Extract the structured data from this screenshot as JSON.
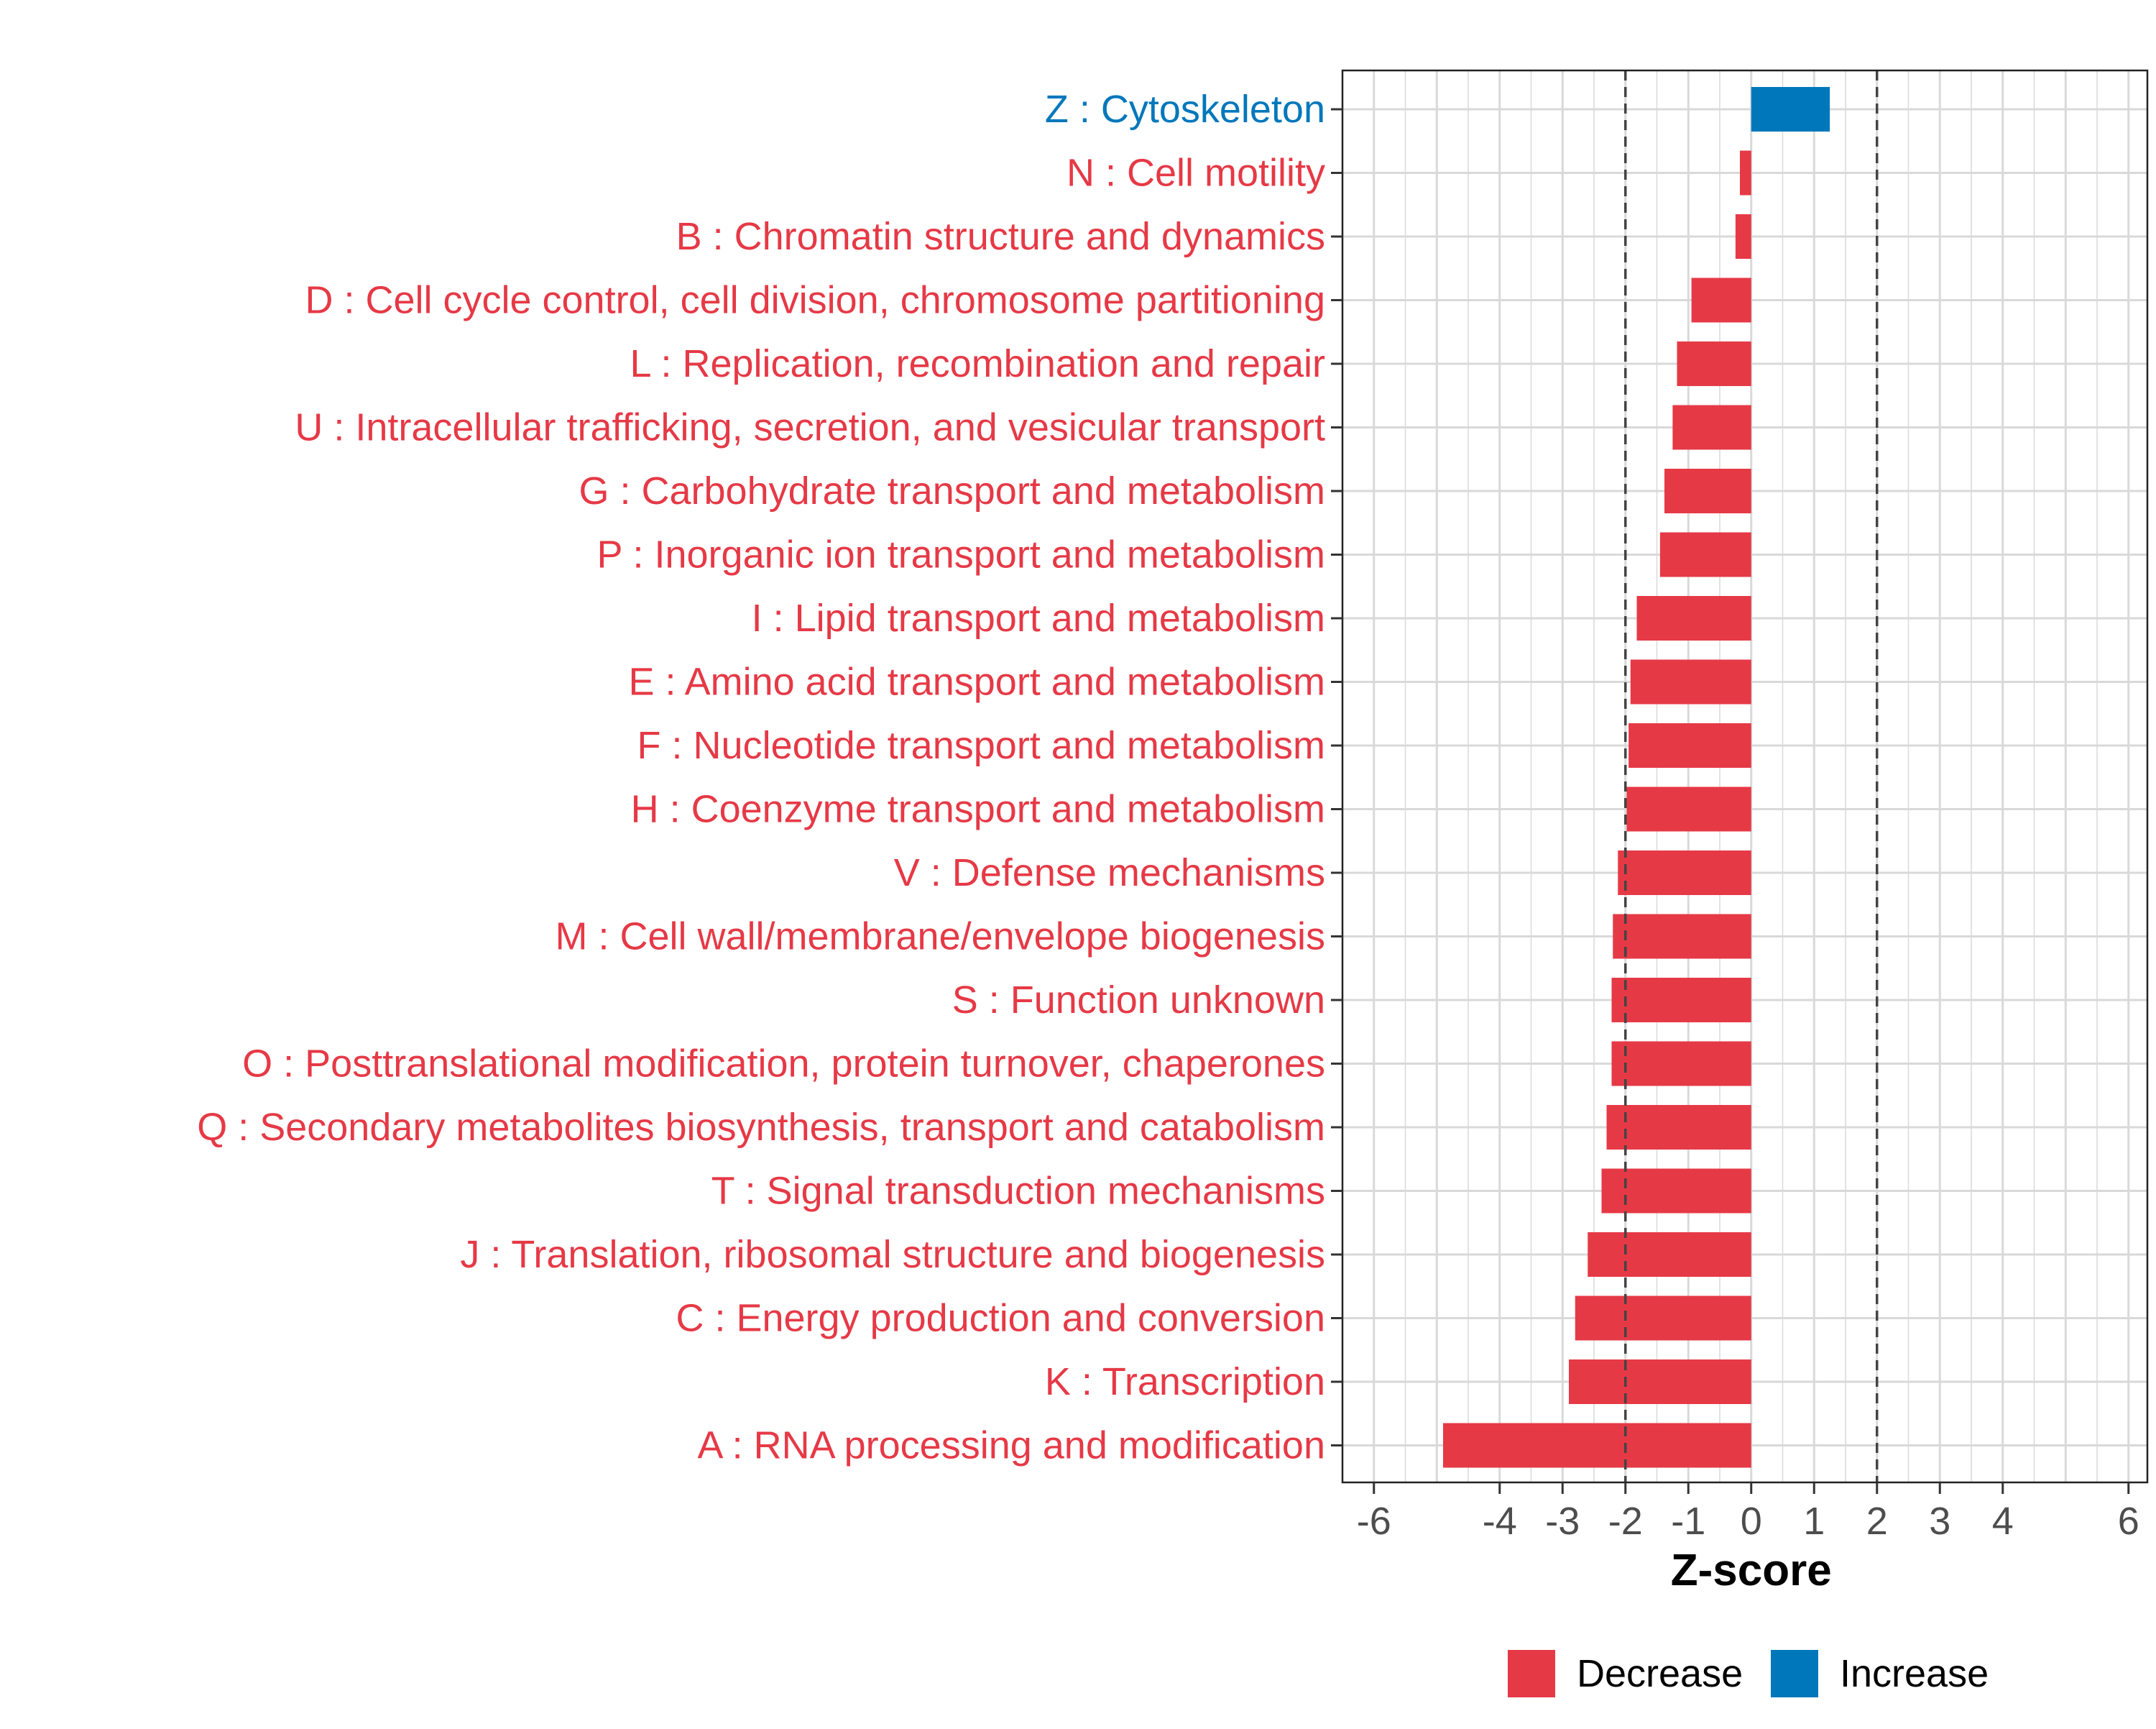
{
  "chart_data": {
    "type": "bar",
    "orientation": "horizontal",
    "xlabel": "Z-score",
    "ylabel": "",
    "xlim": [
      -6.5,
      6.3
    ],
    "xticks": [
      -6,
      -4,
      -3,
      -2,
      -1,
      0,
      1,
      2,
      3,
      4,
      6
    ],
    "reference_lines": [
      -2,
      2
    ],
    "grid": true,
    "legend_position": "bottom",
    "colors": {
      "Decrease": "#e63946",
      "Increase": "#0077bb"
    },
    "legend": [
      {
        "label": "Decrease",
        "color": "#e63946"
      },
      {
        "label": "Increase",
        "color": "#0077bb"
      }
    ],
    "categories": [
      "Z : Cytoskeleton",
      "N : Cell motility",
      "B : Chromatin structure and dynamics",
      "D : Cell cycle control, cell division, chromosome partitioning",
      "L : Replication, recombination and repair",
      "U : Intracellular trafficking, secretion, and vesicular transport",
      "G : Carbohydrate transport and metabolism",
      "P : Inorganic ion transport and metabolism",
      "I : Lipid transport and metabolism",
      "E : Amino acid transport and metabolism",
      "F : Nucleotide transport and metabolism",
      "H : Coenzyme transport and metabolism",
      "V : Defense mechanisms",
      "M : Cell wall/membrane/envelope biogenesis",
      "S : Function unknown",
      "O : Posttranslational modification, protein turnover, chaperones",
      "Q : Secondary metabolites biosynthesis, transport and catabolism",
      "T : Signal transduction mechanisms",
      "J : Translation, ribosomal structure and biogenesis",
      "C : Energy production and conversion",
      "K : Transcription",
      "A : RNA processing and modification"
    ],
    "values": [
      1.25,
      -0.18,
      -0.25,
      -0.95,
      -1.18,
      -1.25,
      -1.38,
      -1.45,
      -1.82,
      -1.92,
      -1.95,
      -1.98,
      -2.12,
      -2.2,
      -2.22,
      -2.22,
      -2.3,
      -2.38,
      -2.6,
      -2.8,
      -2.9,
      -4.9
    ],
    "groups": [
      "Increase",
      "Decrease",
      "Decrease",
      "Decrease",
      "Decrease",
      "Decrease",
      "Decrease",
      "Decrease",
      "Decrease",
      "Decrease",
      "Decrease",
      "Decrease",
      "Decrease",
      "Decrease",
      "Decrease",
      "Decrease",
      "Decrease",
      "Decrease",
      "Decrease",
      "Decrease",
      "Decrease",
      "Decrease"
    ]
  }
}
